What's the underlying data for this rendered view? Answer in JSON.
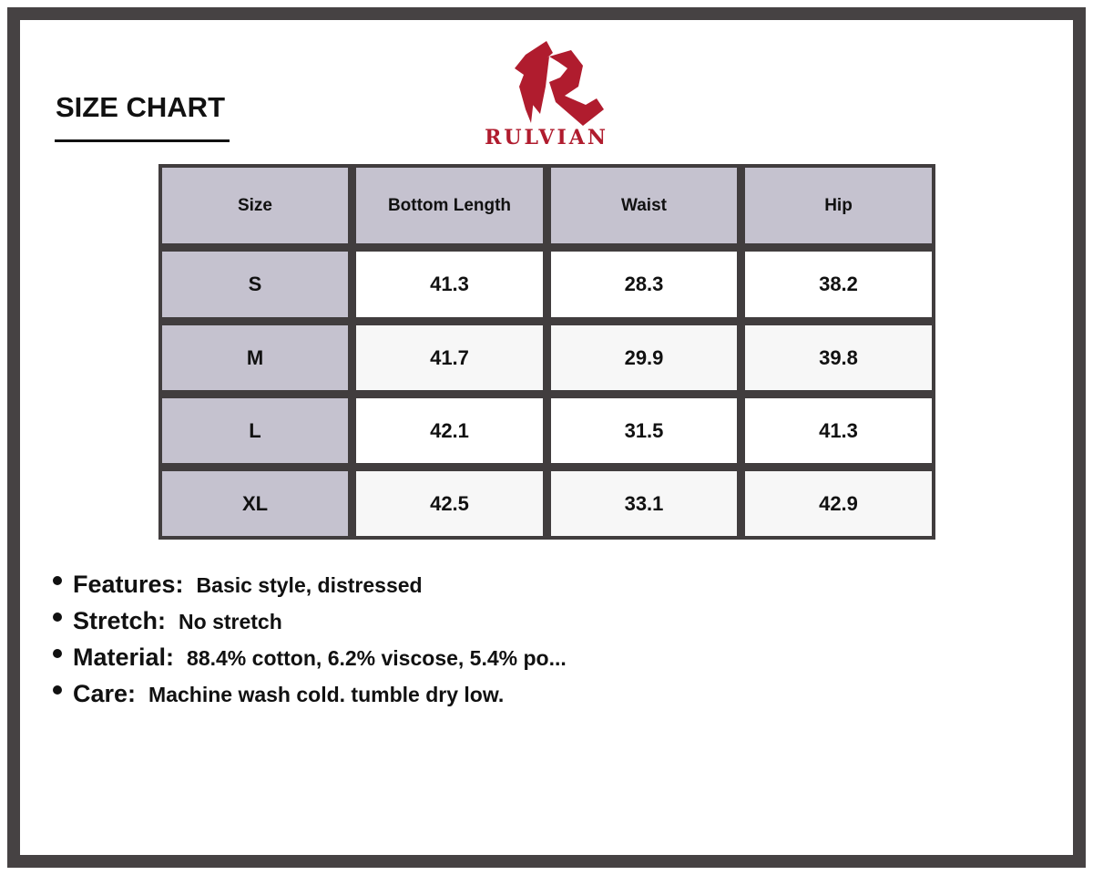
{
  "title": "SIZE CHART",
  "brand": {
    "name": "RULVIAN",
    "color": "#b01c2e"
  },
  "table": {
    "headers": [
      "Size",
      "Bottom Length",
      "Waist",
      "Hip"
    ],
    "rows": [
      [
        "S",
        "41.3",
        "28.3",
        "38.2"
      ],
      [
        "M",
        "41.7",
        "29.9",
        "39.8"
      ],
      [
        "L",
        "42.1",
        "31.5",
        "41.3"
      ],
      [
        "XL",
        "42.5",
        "33.1",
        "42.9"
      ]
    ]
  },
  "notes": [
    {
      "label": "Features:",
      "value": "Basic style, distressed"
    },
    {
      "label": "Stretch:",
      "value": "No stretch"
    },
    {
      "label": "Material:",
      "value": "88.4% cotton, 6.2% viscose, 5.4% po..."
    },
    {
      "label": "Care:",
      "value": "Machine wash cold. tumble dry low."
    }
  ]
}
